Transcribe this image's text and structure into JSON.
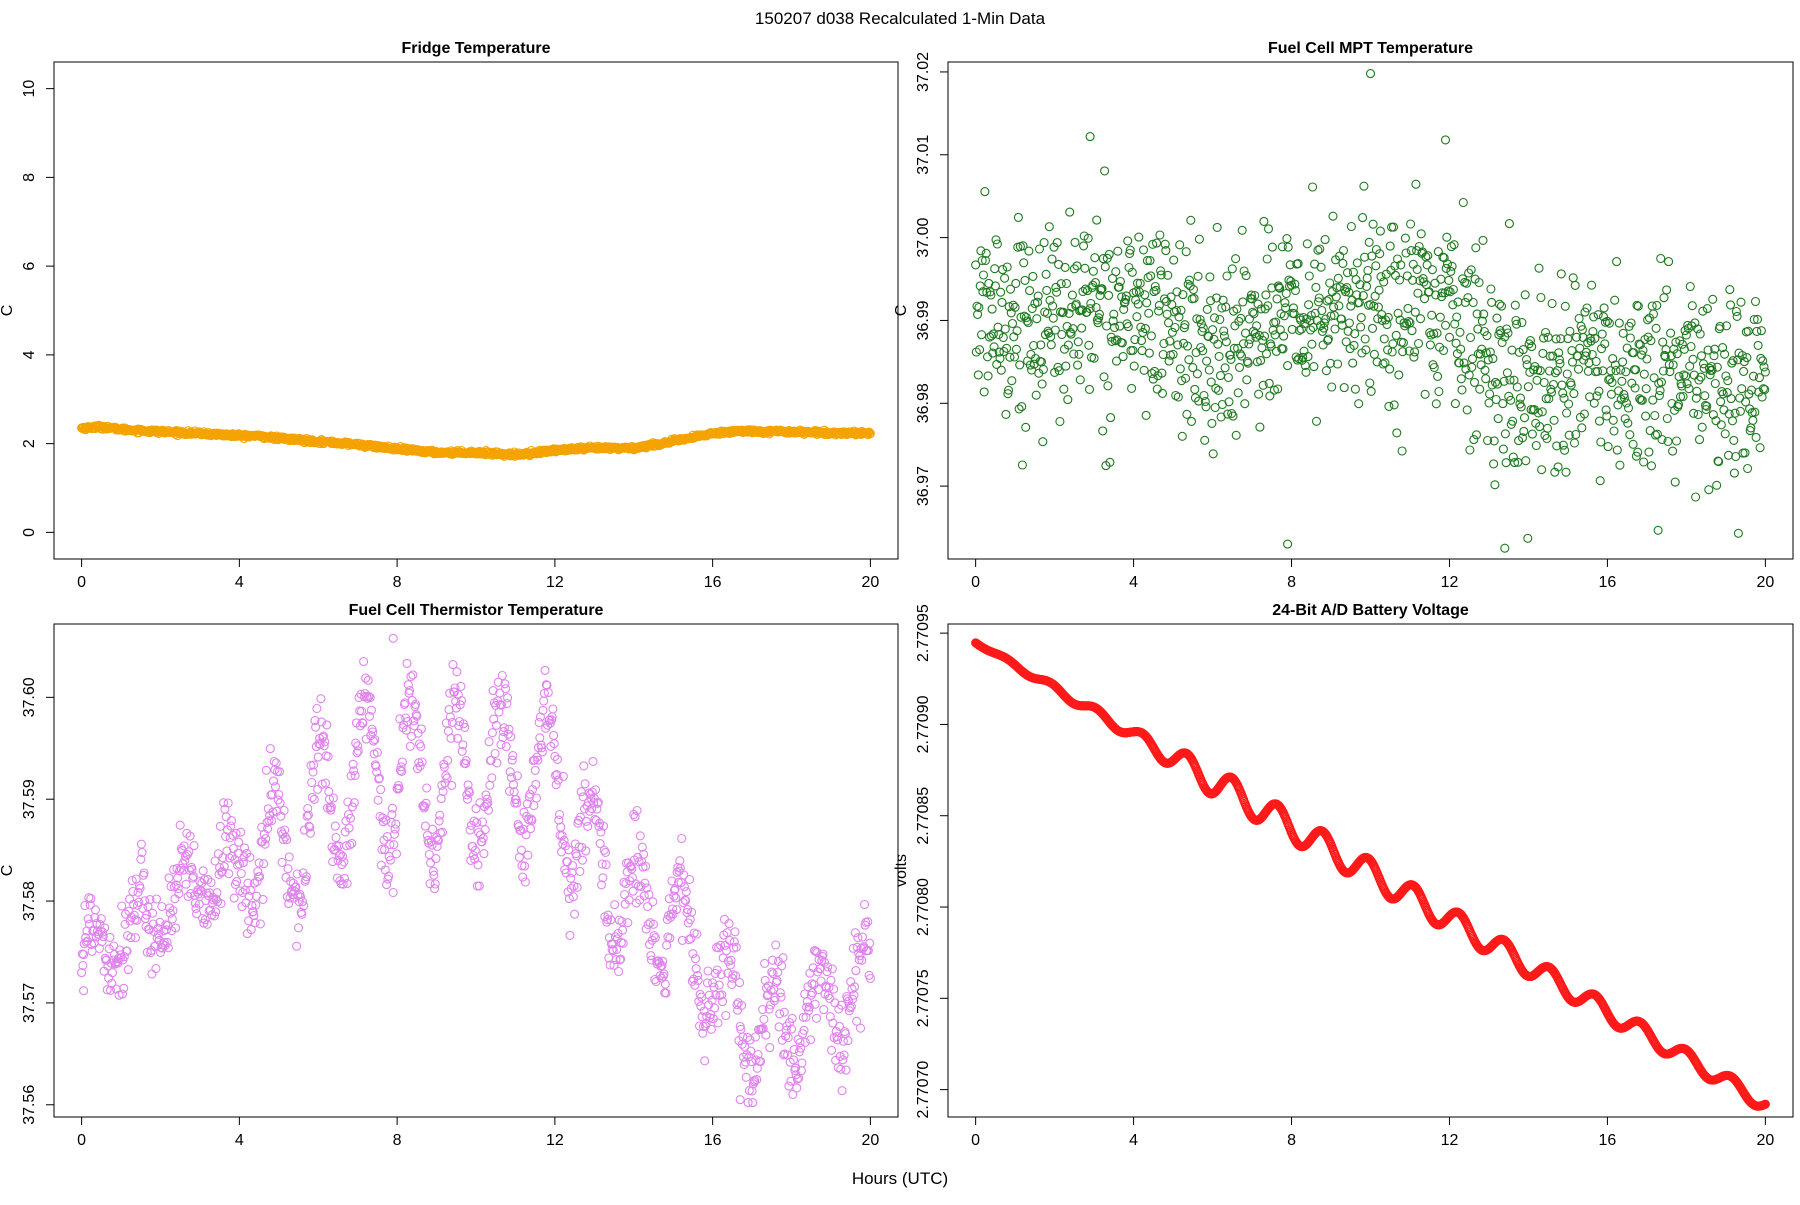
{
  "page": {
    "title": "150207   d038   Recalculated 1-Min Data",
    "xlabel": "Hours (UTC)"
  },
  "chart_data": [
    {
      "id": "fridge",
      "type": "scatter",
      "title": "Fridge Temperature",
      "ylabel": "C",
      "xlim": [
        -0.7,
        20.7
      ],
      "ylim": [
        -0.6,
        10.6
      ],
      "xticks": [
        0,
        4,
        8,
        12,
        16,
        20
      ],
      "yticks": [
        0,
        2,
        4,
        6,
        8,
        10
      ],
      "ytick_labels": [
        "0",
        "2",
        "4",
        "6",
        "8",
        "10"
      ],
      "color": "#f4a300",
      "points_per_hour": 60,
      "series_profile": {
        "x": [
          0,
          0.5,
          1,
          2,
          3,
          4,
          4.5,
          5,
          6,
          7,
          8,
          9,
          10,
          11,
          12,
          13,
          14,
          15,
          16,
          16.5,
          17,
          18,
          19,
          20
        ],
        "y": [
          2.35,
          2.38,
          2.32,
          2.27,
          2.23,
          2.18,
          2.17,
          2.12,
          2.05,
          1.98,
          1.88,
          1.8,
          1.8,
          1.75,
          1.85,
          1.9,
          1.9,
          2.05,
          2.23,
          2.28,
          2.28,
          2.27,
          2.24,
          2.24
        ]
      },
      "noise": 0.02
    },
    {
      "id": "fc-mpt",
      "type": "scatter",
      "title": "Fuel Cell MPT Temperature",
      "ylabel": "C",
      "xlim": [
        -0.7,
        20.7
      ],
      "ylim": [
        36.9612,
        37.0212
      ],
      "xticks": [
        0,
        4,
        8,
        12,
        16,
        20
      ],
      "yticks": [
        36.97,
        36.98,
        36.99,
        37.0,
        37.01,
        37.02
      ],
      "ytick_labels": [
        "36.97",
        "36.98",
        "36.99",
        "37.00",
        "37.01",
        "37.02"
      ],
      "color": "#1e7a1e",
      "points_per_hour": 60,
      "series_profile": {
        "x": [
          0,
          1,
          2,
          3,
          4,
          5,
          6,
          7,
          8,
          9,
          10,
          11,
          12,
          13,
          14,
          15,
          16,
          17,
          18,
          19,
          20
        ],
        "y": [
          36.991,
          36.99,
          36.99,
          36.992,
          36.991,
          36.99,
          36.985,
          36.99,
          36.99,
          36.991,
          36.992,
          36.992,
          36.992,
          36.985,
          36.982,
          36.984,
          36.982,
          36.983,
          36.983,
          36.981,
          36.982
        ]
      },
      "noise": 0.0058,
      "extremes": [
        [
          10.0,
          37.0198
        ],
        [
          13.4,
          36.9625
        ],
        [
          7.9,
          36.963
        ],
        [
          11.9,
          37.0118
        ],
        [
          2.9,
          37.0122
        ]
      ]
    },
    {
      "id": "fc-thermistor",
      "type": "scatter",
      "title": "Fuel Cell Thermistor Temperature",
      "ylabel": "C",
      "xlim": [
        -0.7,
        20.7
      ],
      "ylim": [
        37.5588,
        37.6072
      ],
      "xticks": [
        0,
        4,
        8,
        12,
        16,
        20
      ],
      "yticks": [
        37.56,
        37.57,
        37.58,
        37.59,
        37.6
      ],
      "ytick_labels": [
        "37.56",
        "37.57",
        "37.58",
        "37.59",
        "37.60"
      ],
      "color": "#e083ee",
      "points_per_hour": 60,
      "series_profile": {
        "x": [
          0,
          1,
          2,
          3,
          4,
          5,
          6,
          7,
          8,
          9,
          10,
          11,
          12,
          13,
          14,
          15,
          16,
          17,
          18,
          19,
          20
        ],
        "y": [
          37.5755,
          37.5765,
          37.579,
          37.5815,
          37.5835,
          37.585,
          37.588,
          37.592,
          37.5925,
          37.592,
          37.5925,
          37.5925,
          37.5915,
          37.584,
          37.579,
          37.578,
          37.572,
          37.567,
          37.568,
          37.57,
          37.572
        ]
      },
      "oscillation": {
        "period_hours": 1.15,
        "amplitude_profile": {
          "x": [
            0,
            4,
            5,
            8,
            12,
            13,
            16,
            20
          ],
          "a": [
            0.002,
            0.003,
            0.007,
            0.008,
            0.007,
            0.006,
            0.005,
            0.004
          ]
        }
      },
      "noise": 0.0022,
      "extremes": [
        [
          7.9,
          37.6058
        ],
        [
          16.7,
          37.5605
        ],
        [
          0.05,
          37.5712
        ]
      ]
    },
    {
      "id": "battery",
      "type": "scatter",
      "title": "24-Bit A/D Battery Voltage",
      "ylabel": "volts",
      "xlim": [
        -0.7,
        20.7
      ],
      "ylim": [
        2.770685,
        2.770955
      ],
      "xticks": [
        0,
        4,
        8,
        12,
        16,
        20
      ],
      "yticks": [
        2.7707,
        2.77075,
        2.7708,
        2.77085,
        2.7709,
        2.77095
      ],
      "ytick_labels": [
        "2.77070",
        "2.77075",
        "2.77080",
        "2.77085",
        "2.77090",
        "2.77095"
      ],
      "color": "#ff1a1a",
      "points_per_hour": 60,
      "start": [
        0,
        2.770945
      ],
      "end": [
        20,
        2.770692
      ],
      "oscillation": {
        "period_hours": 1.15,
        "phase_hours": 0.45,
        "amplitude_profile": {
          "x": [
            0,
            2,
            4,
            5,
            6,
            10,
            14,
            18,
            20
          ],
          "a": [
            5e-07,
            2e-06,
            3e-06,
            6e-06,
            8e-06,
            7.5e-06,
            6e-06,
            4.5e-06,
            4e-06
          ]
        }
      }
    }
  ]
}
